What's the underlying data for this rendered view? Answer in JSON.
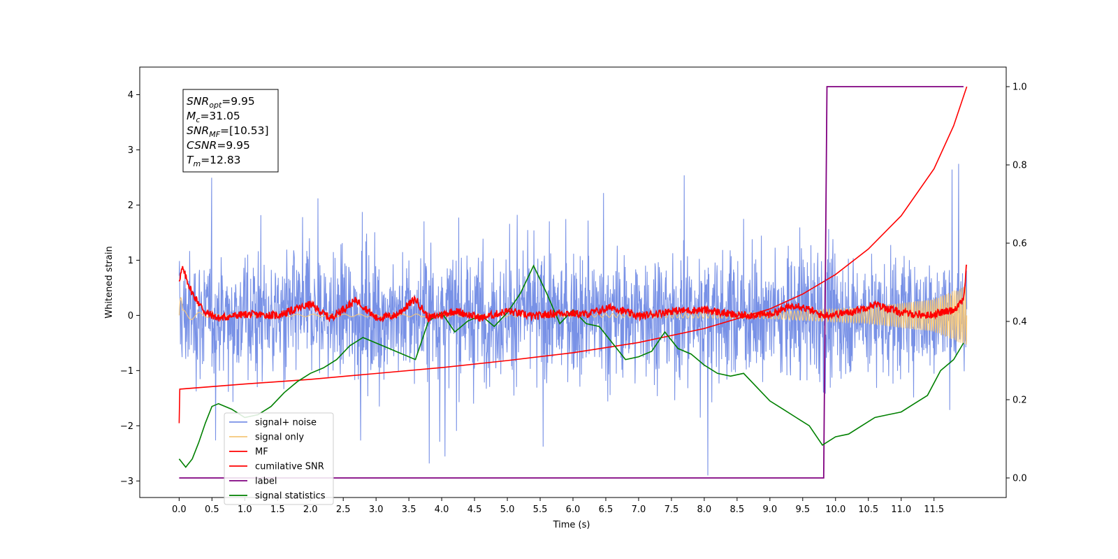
{
  "chart_data": {
    "type": "line",
    "xlabel": "Time (s)",
    "ylabel": "Whitened strain",
    "xlim": [
      -0.6,
      12.6
    ],
    "ylim": [
      -3.3,
      4.5
    ],
    "y2lim": [
      -0.05,
      1.05
    ],
    "x_ticks": [
      "0.0",
      "0.5",
      "1.0",
      "1.5",
      "2.0",
      "2.5",
      "3.0",
      "3.5",
      "4.0",
      "4.5",
      "5.0",
      "5.5",
      "6.0",
      "6.5",
      "7.0",
      "7.5",
      "8.0",
      "8.5",
      "9.0",
      "9.5",
      "10.0",
      "10.5",
      "11.0",
      "11.5"
    ],
    "y_ticks": [
      "−3",
      "−2",
      "−1",
      "0",
      "1",
      "2",
      "3",
      "4"
    ],
    "y2_ticks": [
      "0.0",
      "0.2",
      "0.4",
      "0.6",
      "0.8",
      "1.0"
    ],
    "grid": false,
    "legend_position": "lower-left",
    "annotation": [
      {
        "var": "SNR",
        "sub": "opt",
        "value": "=9.95"
      },
      {
        "var": "M",
        "sub": "c",
        "value": "=31.05"
      },
      {
        "var": "SNR",
        "sub": "MF",
        "value": "=[10.53]"
      },
      {
        "var": "CSNR",
        "sub": "",
        "value": "=9.95"
      },
      {
        "var": "T",
        "sub": "m",
        "value": "=12.83"
      }
    ],
    "series": [
      {
        "name": "signal+ noise",
        "color": "#7891e6",
        "axis": "left",
        "note_values": "noise around 0, typical amplitude about ±1.2 with spikes to about ±2.7, from x=0 to x=12"
      },
      {
        "name": "signal only",
        "color": "#f5c77a",
        "axis": "left",
        "values_xy": [
          [
            0.0,
            1.0
          ],
          [
            0.05,
            0.1
          ],
          [
            0.5,
            0.02
          ],
          [
            6.0,
            0.03
          ],
          [
            9.0,
            0.06
          ],
          [
            10.5,
            0.15
          ],
          [
            11.5,
            0.3
          ],
          [
            12.0,
            0.55
          ]
        ]
      },
      {
        "name": "MF",
        "color": "#ff0000",
        "axis": "left",
        "values_xy": [
          [
            0.0,
            0.65
          ],
          [
            0.05,
            0.85
          ],
          [
            0.2,
            0.4
          ],
          [
            0.4,
            0.05
          ],
          [
            0.6,
            -0.05
          ],
          [
            1.0,
            0.02
          ],
          [
            1.5,
            0.0
          ],
          [
            2.0,
            0.2
          ],
          [
            2.3,
            -0.05
          ],
          [
            2.7,
            0.28
          ],
          [
            3.0,
            -0.05
          ],
          [
            3.3,
            0.0
          ],
          [
            3.6,
            0.3
          ],
          [
            3.8,
            -0.05
          ],
          [
            4.2,
            0.08
          ],
          [
            4.6,
            -0.05
          ],
          [
            5.0,
            0.08
          ],
          [
            5.4,
            -0.02
          ],
          [
            5.8,
            0.05
          ],
          [
            6.2,
            0.02
          ],
          [
            6.6,
            0.15
          ],
          [
            7.0,
            -0.02
          ],
          [
            7.5,
            0.08
          ],
          [
            8.0,
            0.1
          ],
          [
            8.5,
            0.0
          ],
          [
            9.0,
            0.02
          ],
          [
            9.4,
            0.2
          ],
          [
            9.8,
            0.0
          ],
          [
            10.2,
            0.05
          ],
          [
            10.6,
            0.2
          ],
          [
            11.0,
            0.05
          ],
          [
            11.4,
            0.0
          ],
          [
            11.8,
            0.1
          ],
          [
            11.95,
            0.3
          ],
          [
            12.0,
            0.95
          ]
        ]
      },
      {
        "name": "cumilative SNR",
        "color": "#ff0000",
        "axis": "right",
        "values_xy": [
          [
            0.0,
            0.14
          ],
          [
            0.01,
            0.227
          ],
          [
            1.0,
            0.24
          ],
          [
            2.0,
            0.252
          ],
          [
            3.0,
            0.267
          ],
          [
            4.0,
            0.282
          ],
          [
            5.0,
            0.3
          ],
          [
            6.0,
            0.32
          ],
          [
            7.0,
            0.346
          ],
          [
            8.0,
            0.382
          ],
          [
            9.0,
            0.432
          ],
          [
            9.5,
            0.47
          ],
          [
            10.0,
            0.52
          ],
          [
            10.5,
            0.585
          ],
          [
            11.0,
            0.67
          ],
          [
            11.5,
            0.79
          ],
          [
            11.8,
            0.9
          ],
          [
            12.0,
            1.0
          ]
        ]
      },
      {
        "name": "label",
        "color": "#800080",
        "axis": "right",
        "values_xy": [
          [
            0.0,
            0.0
          ],
          [
            9.82,
            0.0
          ],
          [
            9.87,
            1.0
          ],
          [
            11.95,
            1.0
          ]
        ]
      },
      {
        "name": "signal statistics",
        "color": "#008000",
        "axis": "left",
        "values_xy": [
          [
            0.0,
            -2.6
          ],
          [
            0.1,
            -2.75
          ],
          [
            0.2,
            -2.6
          ],
          [
            0.3,
            -2.3
          ],
          [
            0.4,
            -1.95
          ],
          [
            0.5,
            -1.65
          ],
          [
            0.6,
            -1.6
          ],
          [
            0.8,
            -1.7
          ],
          [
            1.0,
            -1.85
          ],
          [
            1.2,
            -1.8
          ],
          [
            1.4,
            -1.65
          ],
          [
            1.6,
            -1.4
          ],
          [
            1.8,
            -1.2
          ],
          [
            2.0,
            -1.05
          ],
          [
            2.2,
            -0.95
          ],
          [
            2.4,
            -0.8
          ],
          [
            2.6,
            -0.55
          ],
          [
            2.8,
            -0.4
          ],
          [
            3.0,
            -0.5
          ],
          [
            3.2,
            -0.6
          ],
          [
            3.4,
            -0.7
          ],
          [
            3.6,
            -0.8
          ],
          [
            3.8,
            -0.1
          ],
          [
            4.0,
            0.05
          ],
          [
            4.2,
            -0.3
          ],
          [
            4.4,
            -0.1
          ],
          [
            4.6,
            0.0
          ],
          [
            4.8,
            -0.2
          ],
          [
            5.0,
            0.05
          ],
          [
            5.2,
            0.4
          ],
          [
            5.4,
            0.9
          ],
          [
            5.6,
            0.4
          ],
          [
            5.8,
            -0.15
          ],
          [
            6.0,
            0.1
          ],
          [
            6.2,
            -0.15
          ],
          [
            6.4,
            -0.2
          ],
          [
            6.6,
            -0.5
          ],
          [
            6.8,
            -0.8
          ],
          [
            7.0,
            -0.75
          ],
          [
            7.2,
            -0.65
          ],
          [
            7.4,
            -0.3
          ],
          [
            7.6,
            -0.6
          ],
          [
            7.8,
            -0.7
          ],
          [
            8.0,
            -0.9
          ],
          [
            8.2,
            -1.05
          ],
          [
            8.4,
            -1.1
          ],
          [
            8.6,
            -1.05
          ],
          [
            8.8,
            -1.3
          ],
          [
            9.0,
            -1.55
          ],
          [
            9.2,
            -1.7
          ],
          [
            9.4,
            -1.85
          ],
          [
            9.6,
            -2.0
          ],
          [
            9.8,
            -2.35
          ],
          [
            10.0,
            -2.2
          ],
          [
            10.2,
            -2.15
          ],
          [
            10.4,
            -2.0
          ],
          [
            10.6,
            -1.85
          ],
          [
            10.8,
            -1.8
          ],
          [
            11.0,
            -1.75
          ],
          [
            11.2,
            -1.6
          ],
          [
            11.4,
            -1.45
          ],
          [
            11.6,
            -1.0
          ],
          [
            11.8,
            -0.8
          ],
          [
            11.95,
            -0.5
          ]
        ]
      }
    ]
  }
}
